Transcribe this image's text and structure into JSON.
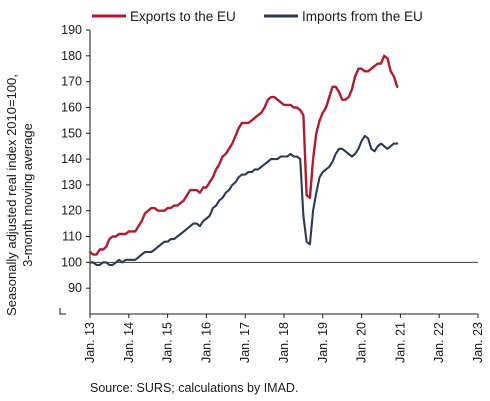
{
  "chart_data": {
    "type": "line",
    "ylabel_line1": "Seasonally adjusted real index 2010=100,",
    "ylabel_line2": "3-month moving average",
    "source": "Source: SURS; calculations by IMAD.",
    "ylim": [
      80,
      190
    ],
    "yticks": [
      90,
      100,
      110,
      120,
      130,
      140,
      150,
      160,
      170,
      180,
      190
    ],
    "x_start": "Jan. 13",
    "x_end": "Jan. 23",
    "xtick_labels": [
      "Jan. 13",
      "Jan. 14",
      "Jan. 15",
      "Jan. 16",
      "Jan. 17",
      "Jan. 18",
      "Jan. 19",
      "Jan. 20",
      "Jan. 21",
      "Jan. 22",
      "Jan. 23"
    ],
    "legend_position": "top",
    "grid": false,
    "reference_line": 100,
    "series": [
      {
        "name": "Exports to the EU",
        "color": "#b01c2e",
        "values": [
          104,
          103,
          103,
          105,
          105,
          106,
          109,
          110,
          110,
          111,
          111,
          111,
          112,
          112,
          112,
          114,
          116,
          119,
          120,
          121,
          121,
          120,
          120,
          120,
          121,
          121,
          122,
          122,
          123,
          124,
          126,
          128,
          128,
          128,
          127,
          129,
          129,
          131,
          133,
          136,
          138,
          141,
          142,
          144,
          146,
          149,
          152,
          154,
          154,
          154,
          155,
          156,
          157,
          158,
          160,
          163,
          164,
          164,
          163,
          162,
          161,
          161,
          161,
          160,
          160,
          159,
          157,
          126,
          125,
          140,
          150,
          155,
          158,
          160,
          164,
          168,
          168,
          166,
          163,
          163,
          164,
          167,
          172,
          175,
          175,
          174,
          174,
          175,
          176,
          177,
          177,
          180,
          179,
          174,
          172,
          168
        ]
      },
      {
        "name": "Imports from the EU",
        "color": "#2b3a55",
        "values": [
          100,
          100,
          99,
          99,
          100,
          100,
          99,
          99,
          100,
          101,
          100,
          101,
          101,
          101,
          101,
          102,
          103,
          104,
          104,
          104,
          105,
          106,
          107,
          108,
          108,
          109,
          109,
          110,
          111,
          112,
          113,
          114,
          115,
          115,
          114,
          116,
          117,
          118,
          121,
          122,
          124,
          125,
          127,
          128,
          130,
          131,
          133,
          134,
          134,
          135,
          135,
          136,
          136,
          137,
          138,
          139,
          140,
          140,
          140,
          141,
          141,
          141,
          142,
          141,
          141,
          140,
          118,
          108,
          107,
          120,
          127,
          133,
          135,
          136,
          137,
          139,
          142,
          144,
          144,
          143,
          142,
          141,
          142,
          144,
          147,
          149,
          148,
          144,
          143,
          145,
          146,
          145,
          144,
          145,
          146,
          146
        ]
      }
    ]
  }
}
